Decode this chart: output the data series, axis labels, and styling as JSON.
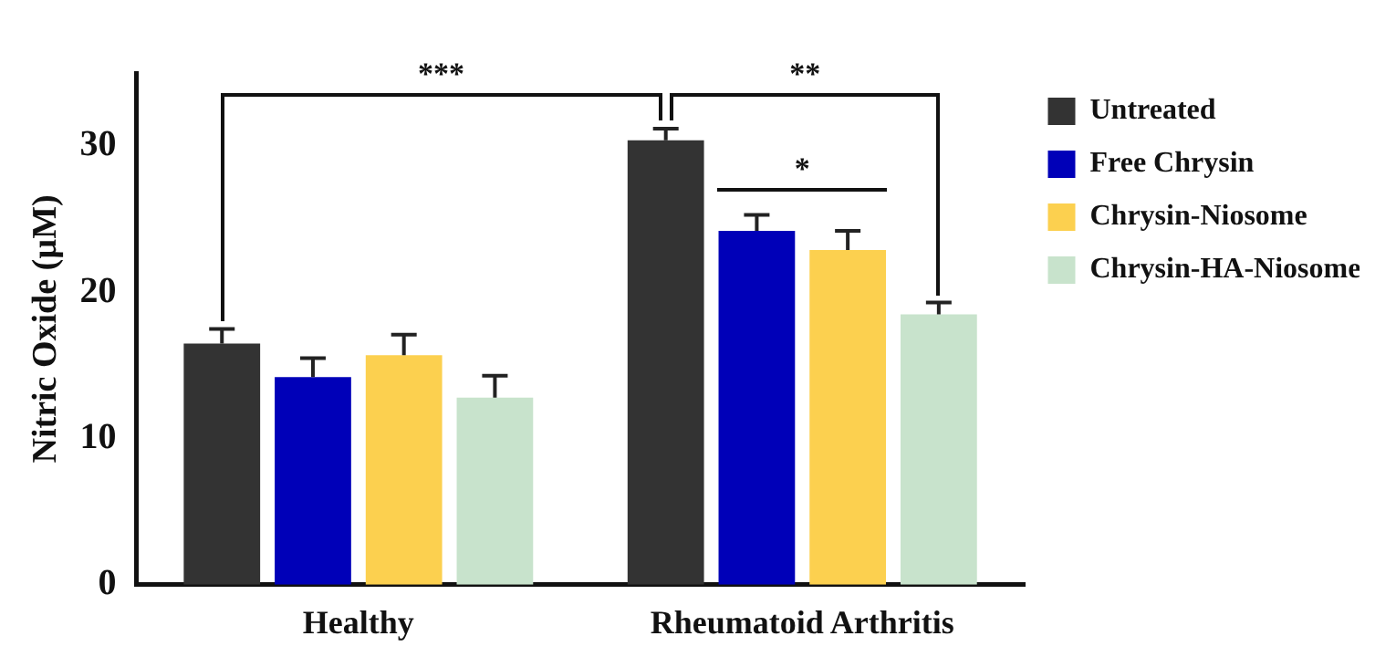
{
  "chart_data": {
    "type": "bar",
    "ylabel": "Nitric Oxide (µM)",
    "categories": [
      "Healthy",
      "Rheumatoid Arthritis"
    ],
    "series": [
      {
        "name": "Untreated",
        "color": "#333333",
        "values": [
          16.5,
          30.4
        ],
        "errors": [
          1.0,
          0.8
        ]
      },
      {
        "name": "Free Chrysin",
        "color": "#0000b8",
        "values": [
          14.2,
          24.2
        ],
        "errors": [
          1.3,
          1.1
        ]
      },
      {
        "name": "Chrysin-Niosome",
        "color": "#fcd04f",
        "values": [
          15.7,
          22.9
        ],
        "errors": [
          1.4,
          1.3
        ]
      },
      {
        "name": "Chrysin-HA-Niosome",
        "color": "#c8e3cc",
        "values": [
          12.8,
          18.5
        ],
        "errors": [
          1.5,
          0.8
        ]
      }
    ],
    "ylim": [
      0,
      35
    ],
    "yticks": [
      0,
      10,
      20,
      30
    ],
    "grid": false,
    "legend": "top right",
    "annotations": [
      "***",
      "**",
      "*"
    ]
  }
}
